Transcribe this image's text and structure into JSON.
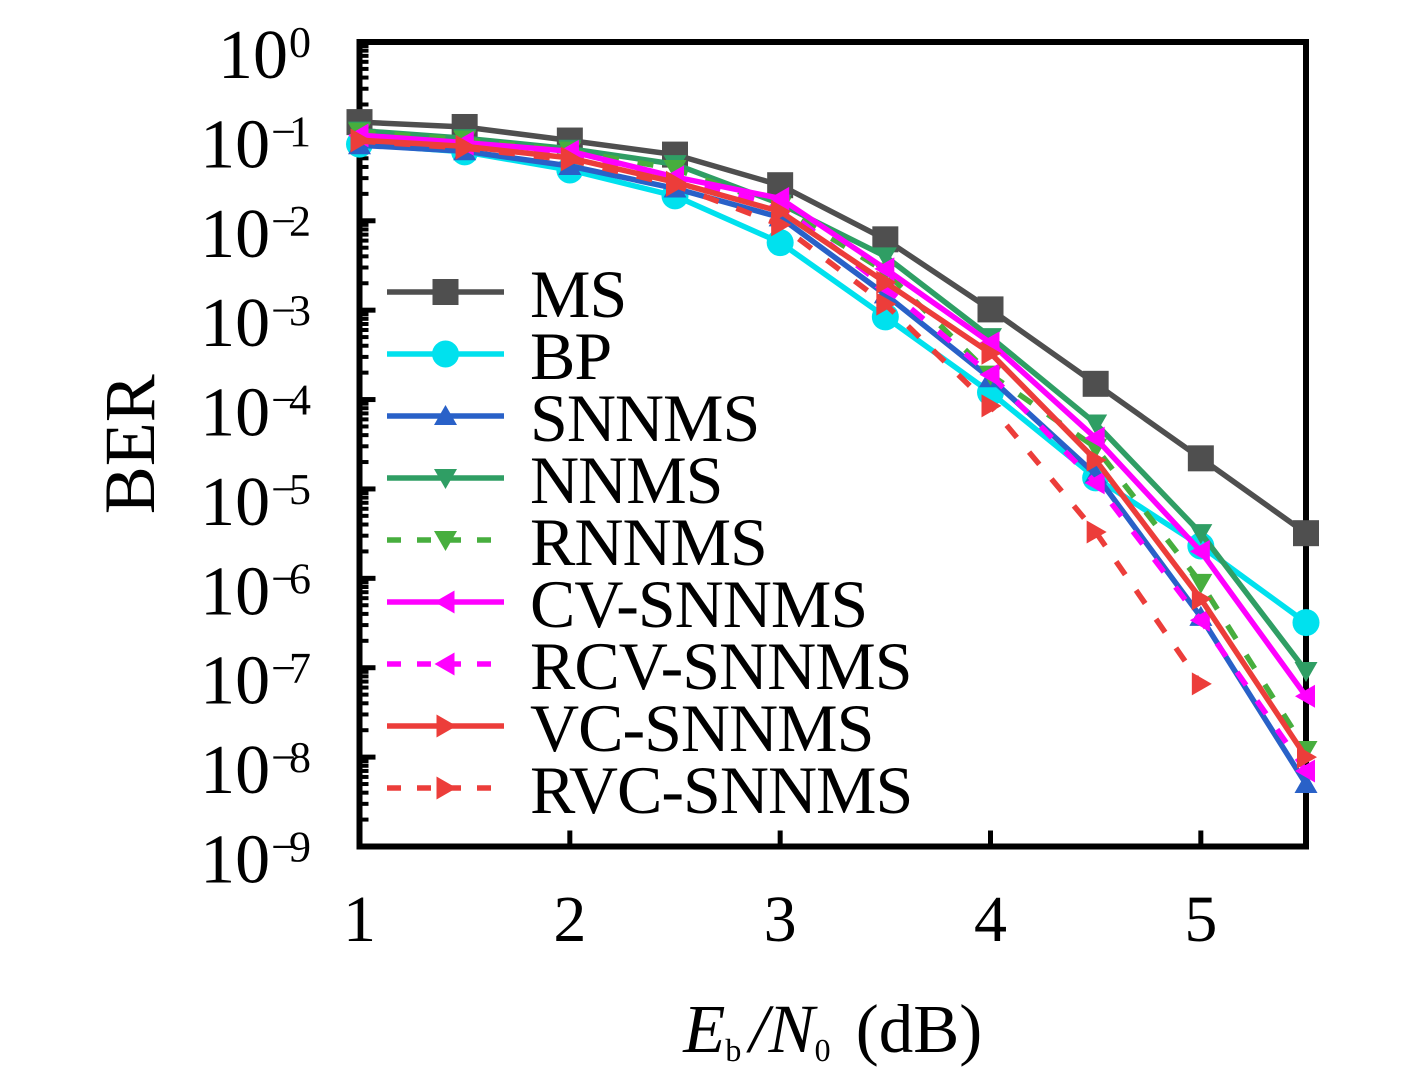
{
  "figure": {
    "background": "#ffffff",
    "axis_color": "#000000"
  },
  "chart_data": {
    "type": "line",
    "title": "",
    "xlabel_segments": [
      {
        "text": "E",
        "style": "italic"
      },
      {
        "text": "b",
        "style": "subscript"
      },
      {
        "text": "/",
        "style": "italic"
      },
      {
        "text": "N",
        "style": "italic"
      },
      {
        "text": "0",
        "style": "subscript"
      },
      {
        "text": " (dB)",
        "style": "normal"
      }
    ],
    "ylabel": "BER",
    "x_ticks": [
      1,
      2,
      3,
      4,
      5
    ],
    "y_tick_base": "10",
    "y_tick_exponents": [
      0,
      -1,
      -2,
      -3,
      -4,
      -5,
      -6,
      -7,
      -8,
      -9
    ],
    "xlim": [
      1,
      5.5
    ],
    "ylim": [
      1e-09,
      1
    ],
    "grid": false,
    "legend_position": "inside center-left",
    "x": [
      1,
      1.5,
      2,
      2.5,
      3,
      3.5,
      4,
      4.5,
      5,
      5.5
    ],
    "series": [
      {
        "name": "MS",
        "color": "#4f4f4f",
        "linestyle": "solid",
        "marker": "square",
        "values": [
          0.127,
          0.112,
          0.079,
          0.055,
          0.025,
          0.0062,
          0.00102,
          0.00015,
          2.2e-05,
          3.2e-06
        ]
      },
      {
        "name": "BP",
        "color": "#00e1ee",
        "linestyle": "solid",
        "marker": "circle",
        "values": [
          0.072,
          0.059,
          0.037,
          0.019,
          0.0057,
          0.00084,
          0.00012,
          1.33e-05,
          2.3e-06,
          3.2e-07
        ]
      },
      {
        "name": "SNNMS",
        "color": "#2961c8",
        "linestyle": "solid",
        "marker": "triangle-up",
        "values": [
          0.07,
          0.06,
          0.041,
          0.023,
          0.0109,
          0.0015,
          0.000173,
          1.45e-05,
          3.7e-07,
          5e-09
        ]
      },
      {
        "name": "NNMS",
        "color": "#2f9e64",
        "linestyle": "solid",
        "marker": "triangle-down",
        "values": [
          0.102,
          0.084,
          0.064,
          0.043,
          0.0155,
          0.004,
          0.0005,
          5.4e-05,
          3.2e-06,
          9.2e-08
        ]
      },
      {
        "name": "RNNMS",
        "color": "#47ae3e",
        "linestyle": "dashed",
        "marker": "triangle-down",
        "values": [
          0.099,
          0.081,
          0.061,
          0.038,
          0.0145,
          0.0027,
          0.00019,
          2.9e-05,
          8.9e-07,
          1.2e-08
        ]
      },
      {
        "name": "CV-SNNMS",
        "color": "#ff00ff",
        "linestyle": "solid",
        "marker": "triangle-left",
        "values": [
          0.091,
          0.075,
          0.06,
          0.031,
          0.0178,
          0.0029,
          0.00043,
          3.7e-05,
          2e-06,
          4.8e-08
        ]
      },
      {
        "name": "RCV-SNNMS",
        "color": "#ff00ff",
        "linestyle": "dashed",
        "marker": "triangle-left",
        "values": [
          0.089,
          0.072,
          0.058,
          0.029,
          0.0149,
          0.0018,
          0.00019,
          1.17e-05,
          3.4e-07,
          7e-09
        ]
      },
      {
        "name": "VC-SNNMS",
        "color": "#ec3d3a",
        "linestyle": "solid",
        "marker": "triangle-right",
        "values": [
          0.08,
          0.068,
          0.0505,
          0.027,
          0.0127,
          0.00205,
          0.00033,
          2.1e-05,
          5.9e-07,
          1e-08
        ]
      },
      {
        "name": "RVC-SNNMS",
        "color": "#ec3d3a",
        "linestyle": "dashed",
        "marker": "triangle-right",
        "values": [
          0.078,
          0.065,
          0.048,
          0.025,
          0.009,
          0.00117,
          8.5e-05,
          3.3e-06,
          6.6e-08,
          null
        ]
      }
    ]
  }
}
